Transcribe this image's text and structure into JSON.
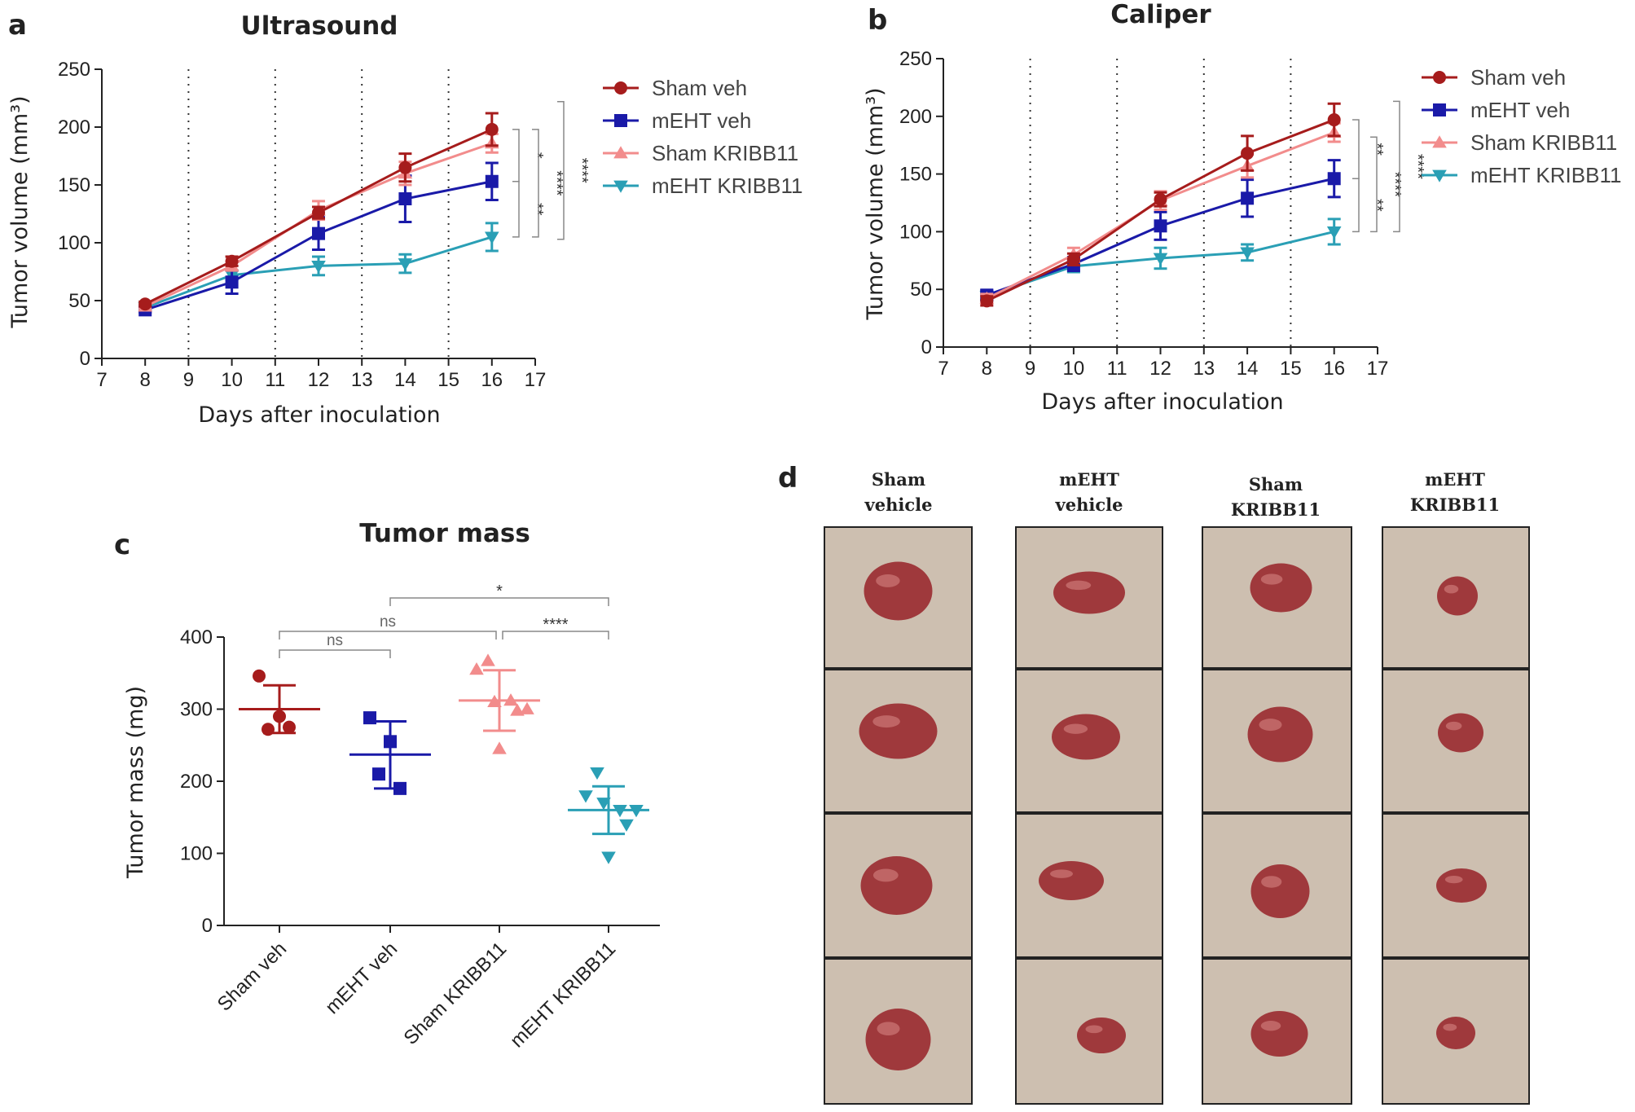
{
  "panels": {
    "a": {
      "letter": "a",
      "title": "Ultrasound"
    },
    "b": {
      "letter": "b",
      "title": "Caliper"
    },
    "c": {
      "letter": "c",
      "title": "Tumor mass"
    },
    "d": {
      "letter": "d"
    }
  },
  "legend": [
    {
      "name": "Sham veh",
      "color": "#a61c1c",
      "marker": "circle"
    },
    {
      "name": "mEHT veh",
      "color": "#1a1aa8",
      "marker": "square"
    },
    {
      "name": "Sham KRIBB11",
      "color": "#f28c8c",
      "marker": "triangle-up"
    },
    {
      "name": "mEHT KRIBB11",
      "color": "#2a9fb5",
      "marker": "triangle-down"
    }
  ],
  "chart_data": [
    {
      "id": "a",
      "type": "line",
      "title": "Ultrasound",
      "xlabel": "Days after inoculation",
      "ylabel": "Tumor volume (mm³)",
      "xlim": [
        7,
        17
      ],
      "ylim": [
        0,
        250
      ],
      "x_ticks": [
        7,
        8,
        9,
        10,
        11,
        12,
        13,
        14,
        15,
        16,
        17
      ],
      "y_ticks": [
        0,
        50,
        100,
        150,
        200,
        250
      ],
      "treatment_days": [
        9,
        11,
        13,
        15
      ],
      "x": [
        8,
        10,
        12,
        14,
        16
      ],
      "series": [
        {
          "name": "Sham veh",
          "values": [
            47,
            84,
            126,
            165,
            198
          ],
          "err": [
            2,
            4,
            5,
            12,
            14
          ]
        },
        {
          "name": "mEHT veh",
          "values": [
            42,
            66,
            108,
            138,
            153
          ],
          "err": [
            2,
            10,
            14,
            20,
            16
          ]
        },
        {
          "name": "Sham KRIBB11",
          "values": [
            45,
            80,
            128,
            160,
            186
          ],
          "err": [
            2,
            4,
            8,
            10,
            8
          ]
        },
        {
          "name": "mEHT KRIBB11",
          "values": [
            44,
            72,
            80,
            82,
            105
          ],
          "err": [
            2,
            4,
            8,
            8,
            12
          ]
        }
      ],
      "significance": [
        {
          "label": "*",
          "between": [
            "Sham veh",
            "mEHT veh"
          ]
        },
        {
          "label": "**",
          "between": [
            "mEHT veh",
            "mEHT KRIBB11"
          ]
        },
        {
          "label": "****",
          "between": [
            "Sham veh",
            "mEHT KRIBB11"
          ]
        },
        {
          "label": "****",
          "between": [
            "Sham veh",
            "mEHT KRIBB11"
          ]
        }
      ]
    },
    {
      "id": "b",
      "type": "line",
      "title": "Caliper",
      "xlabel": "Days after inoculation",
      "ylabel": "Tumor volume (mm³)",
      "xlim": [
        7,
        17
      ],
      "ylim": [
        0,
        250
      ],
      "x_ticks": [
        7,
        8,
        9,
        10,
        11,
        12,
        13,
        14,
        15,
        16,
        17
      ],
      "y_ticks": [
        0,
        50,
        100,
        150,
        200,
        250
      ],
      "treatment_days": [
        9,
        11,
        13,
        15
      ],
      "x": [
        8,
        10,
        12,
        14,
        16
      ],
      "series": [
        {
          "name": "Sham veh",
          "values": [
            40,
            76,
            128,
            168,
            197
          ],
          "err": [
            4,
            5,
            6,
            15,
            14
          ]
        },
        {
          "name": "mEHT veh",
          "values": [
            45,
            72,
            105,
            129,
            146
          ],
          "err": [
            4,
            6,
            12,
            16,
            16
          ]
        },
        {
          "name": "Sham KRIBB11",
          "values": [
            42,
            80,
            127,
            157,
            186
          ],
          "err": [
            4,
            6,
            8,
            10,
            8
          ]
        },
        {
          "name": "mEHT KRIBB11",
          "values": [
            44,
            70,
            77,
            82,
            100
          ],
          "err": [
            3,
            5,
            9,
            7,
            11
          ]
        }
      ],
      "significance": [
        {
          "label": "**",
          "between": [
            "Sham veh",
            "mEHT veh"
          ]
        },
        {
          "label": "**",
          "between": [
            "mEHT veh",
            "mEHT KRIBB11"
          ]
        },
        {
          "label": "****",
          "between": [
            "Sham veh",
            "mEHT KRIBB11"
          ]
        },
        {
          "label": "****",
          "between": [
            "Sham veh",
            "mEHT KRIBB11"
          ]
        }
      ]
    },
    {
      "id": "c",
      "type": "scatter",
      "title": "Tumor mass",
      "ylabel": "Tumor mass (mg)",
      "ylim": [
        0,
        400
      ],
      "y_ticks": [
        0,
        100,
        200,
        300,
        400
      ],
      "categories": [
        "Sham veh",
        "mEHT veh",
        "Sham KRIBB11",
        "mEHT KRIBB11"
      ],
      "groups": [
        {
          "name": "Sham veh",
          "points": [
            346,
            290,
            272,
            275
          ],
          "mean": 300,
          "sd_low": 267,
          "sd_high": 333
        },
        {
          "name": "mEHT veh",
          "points": [
            288,
            255,
            210,
            190
          ],
          "mean": 237,
          "sd_low": 190,
          "sd_high": 283
        },
        {
          "name": "Sham KRIBB11",
          "points": [
            367,
            355,
            310,
            312,
            300,
            298,
            245
          ],
          "mean": 312,
          "sd_low": 270,
          "sd_high": 354
        },
        {
          "name": "mEHT KRIBB11",
          "points": [
            212,
            180,
            170,
            160,
            160,
            140,
            95
          ],
          "mean": 160,
          "sd_low": 127,
          "sd_high": 193
        }
      ],
      "comparisons": [
        {
          "groups": [
            "mEHT veh",
            "mEHT KRIBB11"
          ],
          "label": "*"
        },
        {
          "groups": [
            "Sham veh",
            "Sham KRIBB11"
          ],
          "label": "ns"
        },
        {
          "groups": [
            "Sham KRIBB11",
            "mEHT KRIBB11"
          ],
          "label": "****"
        },
        {
          "groups": [
            "Sham veh",
            "mEHT veh"
          ],
          "label": "ns"
        }
      ]
    }
  ],
  "photos": {
    "columns": [
      {
        "line1": "Sham",
        "line2": "vehicle"
      },
      {
        "line1": "mEHT",
        "line2": "vehicle"
      },
      {
        "line1": "Sham",
        "line2": "KRIBB11"
      },
      {
        "line1": "mEHT",
        "line2": "KRIBB11"
      }
    ],
    "tumor_color": "#9a2a30",
    "background_color": "#cdbfb0"
  }
}
